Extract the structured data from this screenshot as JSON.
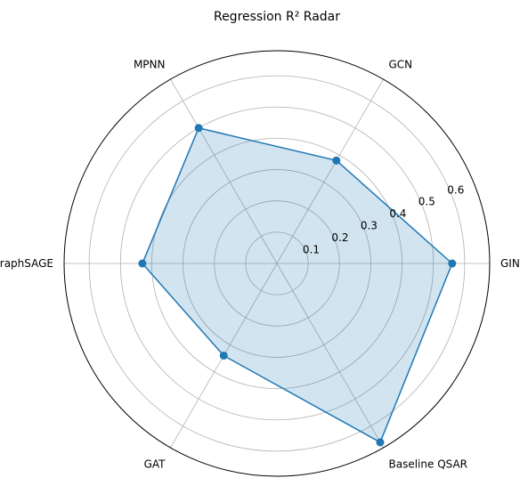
{
  "chart_data": {
    "type": "radar",
    "title": "Regression R² Radar",
    "categories": [
      "GIN",
      "GCN",
      "MPNN",
      "GraphSAGE",
      "GAT",
      "Baseline QSAR"
    ],
    "series": [
      {
        "values": [
          0.56,
          0.38,
          0.5,
          0.43,
          0.34,
          0.66
        ]
      }
    ],
    "rlim": [
      0,
      0.68
    ],
    "r_ticks": [
      0.1,
      0.2,
      0.3,
      0.4,
      0.5,
      0.6
    ],
    "grid": true,
    "colors": {
      "line": "#1f77b4",
      "fill": "#1f77b4",
      "grid": "#b0b0b0"
    }
  }
}
